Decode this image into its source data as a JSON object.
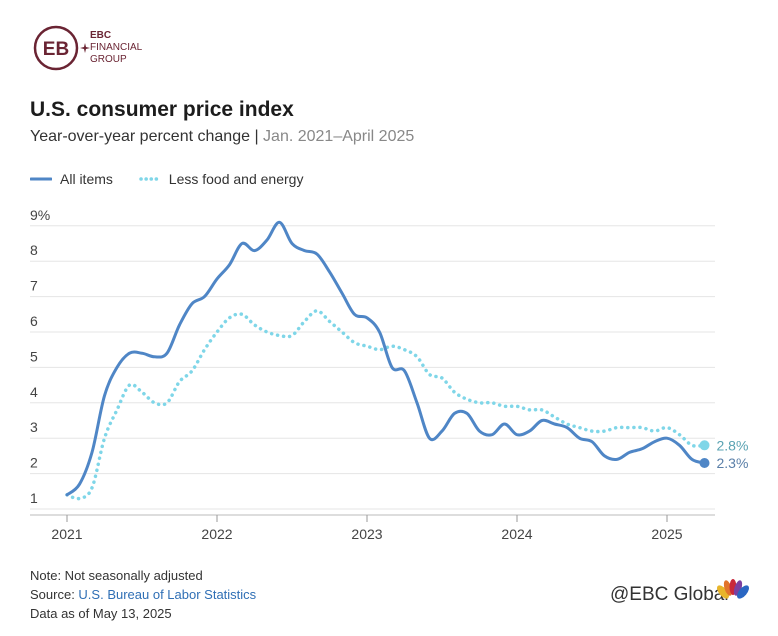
{
  "brand": {
    "line1": "EBC",
    "line2": "FINANCIAL",
    "line3": "GROUP",
    "mark_text": "EB"
  },
  "title": "U.S. consumer price index",
  "subtitle": {
    "main": "Year-over-year percent change",
    "range": "Jan. 2021–April 2025"
  },
  "legend": {
    "all_items": "All items",
    "core": "Less food and energy"
  },
  "colors": {
    "all_items": "#4f86c6",
    "core": "#7fd6e8",
    "grid": "#e5e5e5",
    "brand": "#6a2433"
  },
  "chart_data": {
    "type": "line",
    "title": "U.S. consumer price index",
    "subtitle": "Year-over-year percent change | Jan. 2021–April 2025",
    "xlabel": "",
    "ylabel": "",
    "ylim": [
      1,
      9
    ],
    "yticks": [
      1,
      2,
      3,
      4,
      5,
      6,
      7,
      8,
      9
    ],
    "ytick_labels": [
      "1",
      "2",
      "3",
      "4",
      "5",
      "6",
      "7",
      "8",
      "9%"
    ],
    "xticks": [
      2021,
      2022,
      2023,
      2024,
      2025
    ],
    "xtick_labels": [
      "2021",
      "2022",
      "2023",
      "2024",
      "2025"
    ],
    "x_start": "2021-01",
    "series": [
      {
        "name": "All items",
        "style": "solid",
        "values": [
          1.4,
          1.7,
          2.6,
          4.2,
          5.0,
          5.4,
          5.4,
          5.3,
          5.4,
          6.2,
          6.8,
          7.0,
          7.5,
          7.9,
          8.5,
          8.3,
          8.6,
          9.1,
          8.5,
          8.3,
          8.2,
          7.7,
          7.1,
          6.5,
          6.4,
          6.0,
          5.0,
          4.9,
          4.0,
          3.0,
          3.2,
          3.7,
          3.7,
          3.2,
          3.1,
          3.4,
          3.1,
          3.2,
          3.5,
          3.4,
          3.3,
          3.0,
          2.9,
          2.5,
          2.4,
          2.6,
          2.7,
          2.9,
          3.0,
          2.8,
          2.4,
          2.3
        ],
        "end_label": "2.3%"
      },
      {
        "name": "Less food and energy",
        "style": "dotted",
        "values": [
          1.4,
          1.3,
          1.6,
          3.0,
          3.8,
          4.5,
          4.3,
          4.0,
          4.0,
          4.6,
          4.9,
          5.5,
          6.0,
          6.4,
          6.5,
          6.2,
          6.0,
          5.9,
          5.9,
          6.3,
          6.6,
          6.3,
          6.0,
          5.7,
          5.6,
          5.5,
          5.6,
          5.5,
          5.3,
          4.8,
          4.7,
          4.3,
          4.1,
          4.0,
          4.0,
          3.9,
          3.9,
          3.8,
          3.8,
          3.6,
          3.4,
          3.3,
          3.2,
          3.2,
          3.3,
          3.3,
          3.3,
          3.2,
          3.3,
          3.1,
          2.8,
          2.8
        ],
        "end_label": "2.8%"
      }
    ]
  },
  "notes": {
    "note": "Note: Not seasonally adjusted",
    "source_prefix": "Source: ",
    "source_name": "U.S. Bureau of Labor Statistics",
    "data_as_of": "Data as of May 13, 2025"
  },
  "watermark": "@EBC Global"
}
